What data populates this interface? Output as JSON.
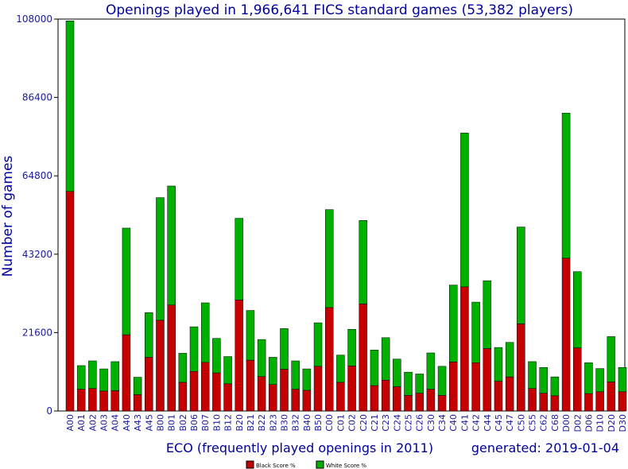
{
  "chart_data": {
    "type": "bar",
    "stacked": true,
    "title": "Openings played in 1,966,641 FICS standard games (53,382 players)",
    "xlabel": "ECO (frequently played openings in 2011)",
    "ylabel": "Number of games",
    "generated": "generated: 2019-01-04",
    "ylim": [
      0,
      108000
    ],
    "yticks": [
      "0",
      "21600",
      "43200",
      "64800",
      "86400",
      "108000"
    ],
    "yticks_values": [
      0,
      21600,
      43200,
      64800,
      86400,
      108000
    ],
    "categories": [
      "A00",
      "A01",
      "A02",
      "A03",
      "A04",
      "A40",
      "A43",
      "A45",
      "B00",
      "B01",
      "B02",
      "B06",
      "B07",
      "B10",
      "B12",
      "B20",
      "B21",
      "B22",
      "B23",
      "B30",
      "B32",
      "B40",
      "B50",
      "C00",
      "C01",
      "C02",
      "C20",
      "C21",
      "C23",
      "C24",
      "C25",
      "C26",
      "C30",
      "C34",
      "C40",
      "C41",
      "C42",
      "C44",
      "C45",
      "C47",
      "C50",
      "C55",
      "C62",
      "C68",
      "D00",
      "D02",
      "D06",
      "D10",
      "D20",
      "D30"
    ],
    "series": [
      {
        "name": "Black Score %",
        "color": "#c40000",
        "values": [
          60500,
          6000,
          6200,
          5500,
          5600,
          21000,
          4500,
          14800,
          25000,
          29200,
          7900,
          10900,
          13400,
          10500,
          7500,
          30600,
          14000,
          9500,
          7300,
          11500,
          6000,
          5700,
          12300,
          28500,
          7900,
          12400,
          29500,
          7000,
          8500,
          6700,
          4300,
          4900,
          6000,
          4300,
          13500,
          34200,
          13300,
          17200,
          8200,
          9400,
          24000,
          6200,
          4900,
          4200,
          42100,
          17400,
          4800,
          5300,
          8000,
          5300
        ]
      },
      {
        "name": "White Score %",
        "color": "#00b000",
        "values": [
          47000,
          6500,
          7600,
          6100,
          8000,
          29400,
          4800,
          12300,
          33800,
          32800,
          8000,
          12300,
          16400,
          9500,
          7500,
          22500,
          13700,
          10200,
          7500,
          11200,
          7800,
          5900,
          12000,
          27000,
          7500,
          10100,
          23000,
          9800,
          11700,
          7600,
          6400,
          5300,
          10000,
          8000,
          21200,
          42400,
          16700,
          18700,
          9300,
          9500,
          26700,
          7400,
          7100,
          5200,
          40000,
          21000,
          8500,
          6400,
          12500,
          6700
        ]
      }
    ],
    "legend_position": "bottom-center",
    "grid": false
  }
}
